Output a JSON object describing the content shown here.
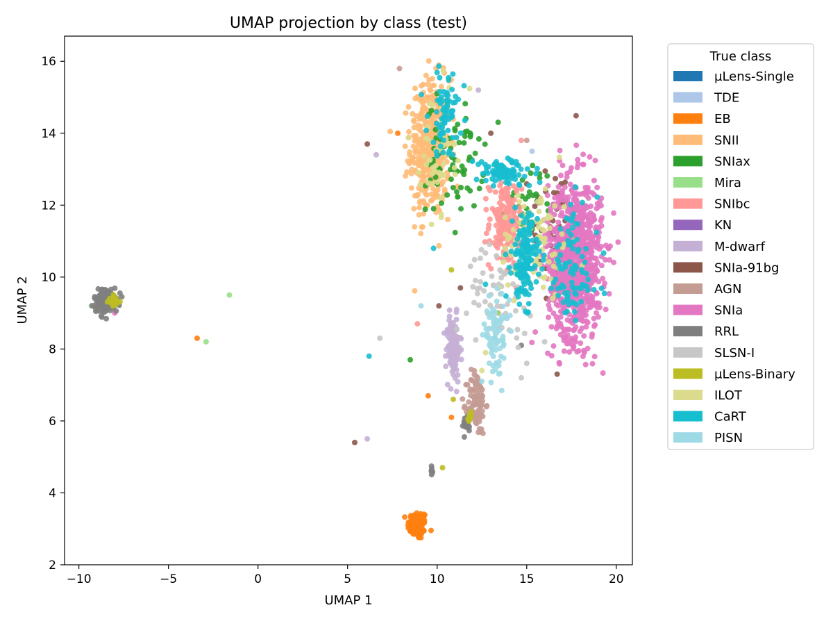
{
  "chart_data": {
    "type": "scatter",
    "title": "UMAP projection by class (test)",
    "xlabel": "UMAP 1",
    "ylabel": "UMAP 2",
    "xlim": [
      -10.8,
      20.9
    ],
    "ylim": [
      2.0,
      16.7
    ],
    "xticks": [
      -10,
      -5,
      0,
      5,
      10,
      15,
      20
    ],
    "yticks": [
      2,
      4,
      6,
      8,
      10,
      12,
      14,
      16
    ],
    "xtick_labels": [
      "−10",
      "−5",
      "0",
      "5",
      "10",
      "15",
      "20"
    ],
    "ytick_labels": [
      "2",
      "4",
      "6",
      "8",
      "10",
      "12",
      "14",
      "16"
    ],
    "grid": false,
    "legend": {
      "title": "True class",
      "placement": "outside-right",
      "entries": [
        "µLens-Single",
        "TDE",
        "EB",
        "SNII",
        "SNIax",
        "Mira",
        "SNIbc",
        "KN",
        "M-dwarf",
        "SNIa-91bg",
        "AGN",
        "SNIa",
        "RRL",
        "SLSN-I",
        "µLens-Binary",
        "ILOT",
        "CaRT",
        "PISN"
      ]
    },
    "series": [
      {
        "name": "µLens-Single",
        "color": "#1f77b4",
        "points": []
      },
      {
        "name": "TDE",
        "color": "#aec7e8",
        "points": [
          [
            15.3,
            13.5
          ]
        ]
      },
      {
        "name": "EB",
        "color": "#ff7f0e",
        "clusters": [
          {
            "center": [
              8.9,
              3.1
            ],
            "spread": [
              0.55,
              0.4
            ],
            "count": 90
          }
        ],
        "points": [
          [
            -3.4,
            8.3
          ],
          [
            9.5,
            6.7
          ],
          [
            10.8,
            6.1
          ],
          [
            7.8,
            14.0
          ],
          [
            -9.2,
            9.2
          ]
        ]
      },
      {
        "name": "SNII",
        "color": "#ffbb78",
        "clusters": [
          {
            "center": [
              9.6,
              13.6
            ],
            "spread": [
              1.1,
              1.9
            ],
            "count": 420
          }
        ]
      },
      {
        "name": "SNIax",
        "color": "#2ca02c",
        "clusters": [
          {
            "center": [
              11.0,
              13.3
            ],
            "spread": [
              1.6,
              1.5
            ],
            "count": 70
          },
          {
            "center": [
              15.2,
              12.2
            ],
            "spread": [
              1.3,
              0.9
            ],
            "count": 30
          }
        ],
        "points": [
          [
            8.5,
            7.7
          ],
          [
            9.8,
            11.9
          ],
          [
            10.0,
            15.1
          ]
        ]
      },
      {
        "name": "Mira",
        "color": "#98df8a",
        "points": [
          [
            -1.6,
            9.5
          ],
          [
            -2.9,
            8.2
          ],
          [
            -9.3,
            9.2
          ]
        ]
      },
      {
        "name": "SNIbc",
        "color": "#ff9896",
        "clusters": [
          {
            "center": [
              13.8,
              11.5
            ],
            "spread": [
              0.9,
              1.2
            ],
            "count": 160
          }
        ],
        "points": [
          [
            8.9,
            8.7
          ],
          [
            13.4,
            8.6
          ],
          [
            14.7,
            13.8
          ]
        ]
      },
      {
        "name": "KN",
        "color": "#9467bd",
        "points": []
      },
      {
        "name": "M-dwarf",
        "color": "#c5b0d5",
        "clusters": [
          {
            "center": [
              10.9,
              8.0
            ],
            "spread": [
              0.4,
              0.9
            ],
            "count": 120
          }
        ],
        "points": [
          [
            6.1,
            5.5
          ],
          [
            6.6,
            13.4
          ],
          [
            12.3,
            15.2
          ]
        ]
      },
      {
        "name": "SNIa-91bg",
        "color": "#8c564b",
        "clusters": [
          {
            "center": [
              16.6,
              11.4
            ],
            "spread": [
              1.4,
              1.8
            ],
            "count": 55
          }
        ],
        "points": [
          [
            5.4,
            5.4
          ],
          [
            6.1,
            13.7
          ],
          [
            10.1,
            9.2
          ],
          [
            11.3,
            9.7
          ],
          [
            13.0,
            14.0
          ],
          [
            16.7,
            7.3
          ]
        ]
      },
      {
        "name": "AGN",
        "color": "#c49c94",
        "clusters": [
          {
            "center": [
              12.2,
              6.5
            ],
            "spread": [
              0.5,
              0.9
            ],
            "count": 110
          }
        ],
        "points": [
          [
            7.9,
            15.8
          ],
          [
            15.0,
            13.8
          ]
        ]
      },
      {
        "name": "SNIa",
        "color": "#e377c2",
        "clusters": [
          {
            "center": [
              17.7,
              10.5
            ],
            "spread": [
              1.5,
              2.2
            ],
            "count": 900
          }
        ],
        "points": [
          [
            -8.0,
            9.0
          ]
        ]
      },
      {
        "name": "RRL",
        "color": "#7f7f7f",
        "clusters": [
          {
            "center": [
              -8.5,
              9.35
            ],
            "spread": [
              0.65,
              0.35
            ],
            "count": 140
          },
          {
            "center": [
              11.6,
              5.9
            ],
            "spread": [
              0.3,
              0.3
            ],
            "count": 20
          },
          {
            "center": [
              9.7,
              4.6
            ],
            "spread": [
              0.06,
              0.12
            ],
            "count": 8
          }
        ],
        "points": [
          [
            14.7,
            8.1
          ]
        ]
      },
      {
        "name": "SLSN-I",
        "color": "#c7c7c7",
        "clusters": [
          {
            "center": [
              13.5,
              9.6
            ],
            "spread": [
              1.8,
              1.2
            ],
            "count": 60
          }
        ],
        "points": [
          [
            6.8,
            8.3
          ],
          [
            14.7,
            7.2
          ],
          [
            15.0,
            7.6
          ],
          [
            16.0,
            8.2
          ]
        ]
      },
      {
        "name": "µLens-Binary",
        "color": "#bcbd22",
        "clusters": [
          {
            "center": [
              -8.0,
              9.35
            ],
            "spread": [
              0.35,
              0.2
            ],
            "count": 16
          },
          {
            "center": [
              11.8,
              6.1
            ],
            "spread": [
              0.3,
              0.2
            ],
            "count": 8
          }
        ],
        "points": [
          [
            10.3,
            4.7
          ],
          [
            10.9,
            6.6
          ],
          [
            10.8,
            10.2
          ],
          [
            13.4,
            9.0
          ]
        ]
      },
      {
        "name": "ILOT",
        "color": "#dbdb8d",
        "clusters": [
          {
            "center": [
              15.5,
              11.0
            ],
            "spread": [
              2.0,
              1.6
            ],
            "count": 90
          },
          {
            "center": [
              10.0,
              13.5
            ],
            "spread": [
              1.0,
              1.6
            ],
            "count": 50
          }
        ],
        "points": [
          [
            12.5,
            7.4
          ],
          [
            12.7,
            7.9
          ]
        ]
      },
      {
        "name": "CaRT",
        "color": "#17becf",
        "clusters": [
          {
            "center": [
              13.7,
              12.9
            ],
            "spread": [
              1.6,
              0.4
            ],
            "count": 90
          },
          {
            "center": [
              14.9,
              10.5
            ],
            "spread": [
              0.7,
              1.2
            ],
            "count": 150
          },
          {
            "center": [
              10.5,
              14.6
            ],
            "spread": [
              1.0,
              1.2
            ],
            "count": 70
          },
          {
            "center": [
              17.5,
              10.2
            ],
            "spread": [
              1.5,
              1.8
            ],
            "count": 90
          }
        ],
        "points": [
          [
            6.2,
            7.8
          ],
          [
            9.8,
            10.8
          ],
          [
            12.7,
            9.8
          ],
          [
            13.2,
            8.3
          ]
        ]
      },
      {
        "name": "PISN",
        "color": "#9edae5",
        "clusters": [
          {
            "center": [
              13.3,
              8.4
            ],
            "spread": [
              0.7,
              1.0
            ],
            "count": 80
          }
        ],
        "points": [
          [
            9.1,
            9.2
          ],
          [
            12.5,
            7.1
          ]
        ]
      }
    ]
  }
}
